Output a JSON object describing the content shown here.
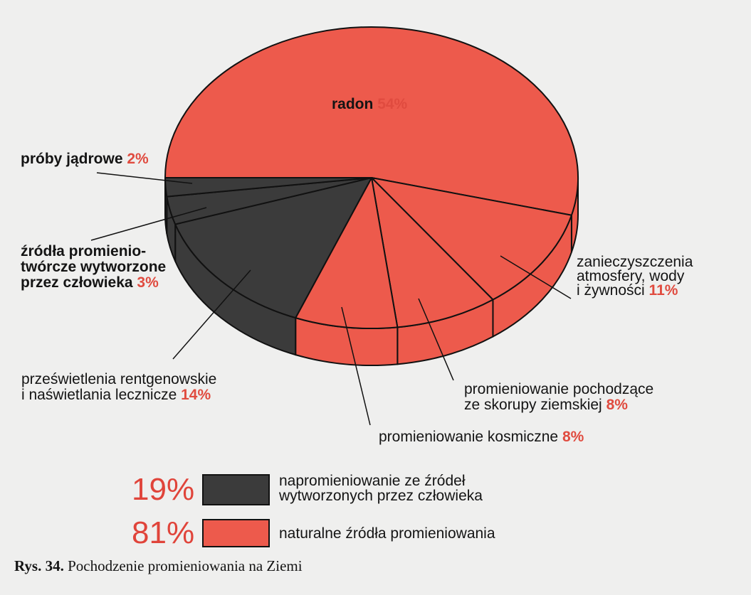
{
  "colors": {
    "natural": "#ed5a4c",
    "man_made": "#3b3b3b",
    "page_background": "#efefee",
    "percent_text": "#e04b3f",
    "outline": "#111111"
  },
  "chart_data": {
    "type": "pie",
    "style": "3d-exploded",
    "slices": [
      {
        "id": "radon",
        "lines": [
          "radon"
        ],
        "value": 54,
        "pct_label": "54%",
        "group": "natural"
      },
      {
        "id": "pollution",
        "lines": [
          "zanieczyszczenia",
          "atmosfery, wody",
          "i żywności"
        ],
        "value": 11,
        "pct_label": "11%",
        "group": "natural"
      },
      {
        "id": "ground",
        "lines": [
          "promieniowanie pochodzące",
          "ze skorupy ziemskiej"
        ],
        "value": 8,
        "pct_label": "8%",
        "group": "natural"
      },
      {
        "id": "cosmic",
        "lines": [
          "promieniowanie kosmiczne"
        ],
        "value": 8,
        "pct_label": "8%",
        "group": "natural"
      },
      {
        "id": "xray",
        "lines": [
          "prześwietlenia rentgenowskie",
          "i naświetlania lecznicze"
        ],
        "value": 14,
        "pct_label": "14%",
        "group": "man_made"
      },
      {
        "id": "manmade_sources",
        "lines": [
          "źródła promienio-",
          "twórcze wytworzone",
          "przez człowieka"
        ],
        "value": 3,
        "pct_label": "3%",
        "group": "man_made"
      },
      {
        "id": "nuclear_tests",
        "lines": [
          "próby jądrowe"
        ],
        "value": 2,
        "pct_label": "2%",
        "group": "man_made"
      }
    ],
    "legend": [
      {
        "group": "man_made",
        "value": 19,
        "pct_label": "19%",
        "lines": [
          "napromieniowanie ze źródeł",
          "wytworzonych przez człowieka"
        ]
      },
      {
        "group": "natural",
        "value": 81,
        "pct_label": "81%",
        "lines": [
          "naturalne źródła promieniowania"
        ]
      }
    ],
    "legend_position": "bottom"
  },
  "caption": {
    "prefix": "Rys. 34.",
    "text": "Pochodzenie promieniowania na Ziemi"
  }
}
